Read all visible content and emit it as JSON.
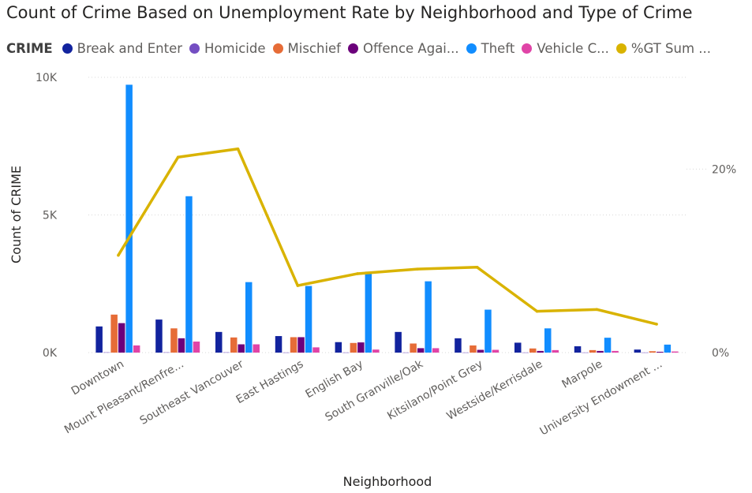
{
  "chart_data": {
    "type": "bar",
    "title": "Count of Crime Based on Unemployment Rate by Neighborhood and Type of Crime",
    "legend_title": "CRIME",
    "legend_placement": "top-left",
    "xlabel": "Neighborhood",
    "ylabel": "Count of CRIME",
    "categories": [
      "Downtown",
      "Mount Pleasant/Renfre...",
      "Southeast Vancouver",
      "East Hastings",
      "English Bay",
      "South Granville/Oak",
      "Kitsilano/Point Grey",
      "Westside/Kerrisdale",
      "Marpole",
      "University Endowment ..."
    ],
    "y_ticks": [
      "0K",
      "5K",
      "10K"
    ],
    "ylim": [
      0,
      10000
    ],
    "y2_ticks": [
      "0%",
      "20%"
    ],
    "y2lim": [
      0,
      0.3
    ],
    "grid": true,
    "series": [
      {
        "name": "Break and Enter",
        "legend_label": "Break and Enter",
        "color": "#12239e",
        "values": [
          950,
          1200,
          750,
          600,
          380,
          750,
          520,
          360,
          230,
          110
        ]
      },
      {
        "name": "Homicide",
        "legend_label": "Homicide",
        "color": "#744ec2",
        "values": [
          10,
          10,
          10,
          5,
          5,
          5,
          5,
          5,
          5,
          5
        ]
      },
      {
        "name": "Mischief",
        "legend_label": "Mischief",
        "color": "#e66c37",
        "values": [
          1380,
          880,
          550,
          560,
          350,
          330,
          260,
          150,
          90,
          50
        ]
      },
      {
        "name": "Offence Against a Person",
        "legend_label": "Offence Agai...",
        "color": "#6b007b",
        "values": [
          1070,
          520,
          300,
          560,
          370,
          160,
          100,
          60,
          60,
          30
        ]
      },
      {
        "name": "Theft",
        "legend_label": "Theft",
        "color": "#118dff",
        "values": [
          9730,
          5680,
          2560,
          2420,
          2940,
          2590,
          1560,
          880,
          540,
          290
        ]
      },
      {
        "name": "Vehicle Collision",
        "legend_label": "Vehicle C...",
        "color": "#e044a7",
        "values": [
          260,
          400,
          300,
          190,
          110,
          160,
          100,
          90,
          60,
          40
        ]
      }
    ],
    "line_series": {
      "name": "%GT Sum ...",
      "legend_label": "%GT Sum ...",
      "color": "#d9b300",
      "axis": "secondary",
      "values": [
        0.106,
        0.213,
        0.222,
        0.073,
        0.086,
        0.091,
        0.093,
        0.045,
        0.047,
        0.031
      ]
    }
  }
}
